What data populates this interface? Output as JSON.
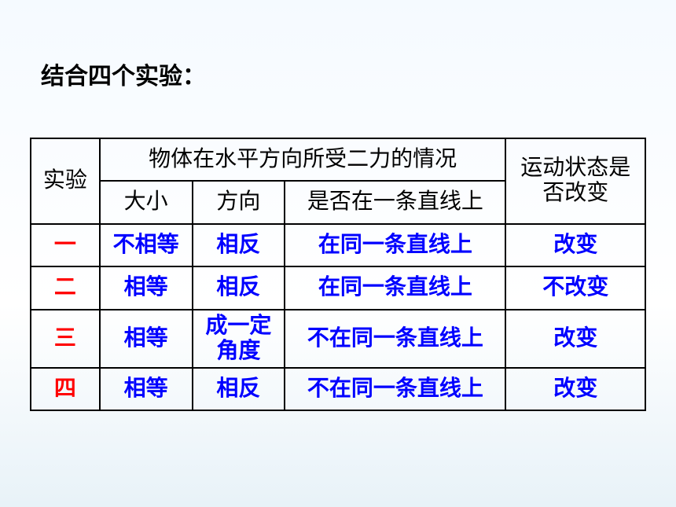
{
  "title": "结合四个实验：",
  "table": {
    "headers": {
      "experiment": "实验",
      "forces_header": "物体在水平方向所受二力的情况",
      "size": "大小",
      "direction": "方向",
      "same_line": "是否在一条直线上",
      "state_change": "运动状态是否改变"
    },
    "rows": [
      {
        "num": "一",
        "size": "不相等",
        "direction": "相反",
        "line": "在同一条直线上",
        "state": "改变"
      },
      {
        "num": "二",
        "size": "相等",
        "direction": "相反",
        "line": "在同一条直线上",
        "state": "不改变"
      },
      {
        "num": "三",
        "size": "相等",
        "direction": "成一定角度",
        "line": "不在同一条直线上",
        "state": "改变"
      },
      {
        "num": "四",
        "size": "相等",
        "direction": "相反",
        "line": "不在同一条直线上",
        "state": "改变"
      }
    ]
  },
  "colors": {
    "header_text": "#000000",
    "row_num": "#ff0000",
    "data_text": "#0000ff",
    "border": "#000000",
    "background_top": "#f5faff",
    "background_bottom": "#e8f2f8"
  },
  "typography": {
    "title_fontsize": 30,
    "cell_fontsize": 28,
    "font_family": "SimSun"
  }
}
